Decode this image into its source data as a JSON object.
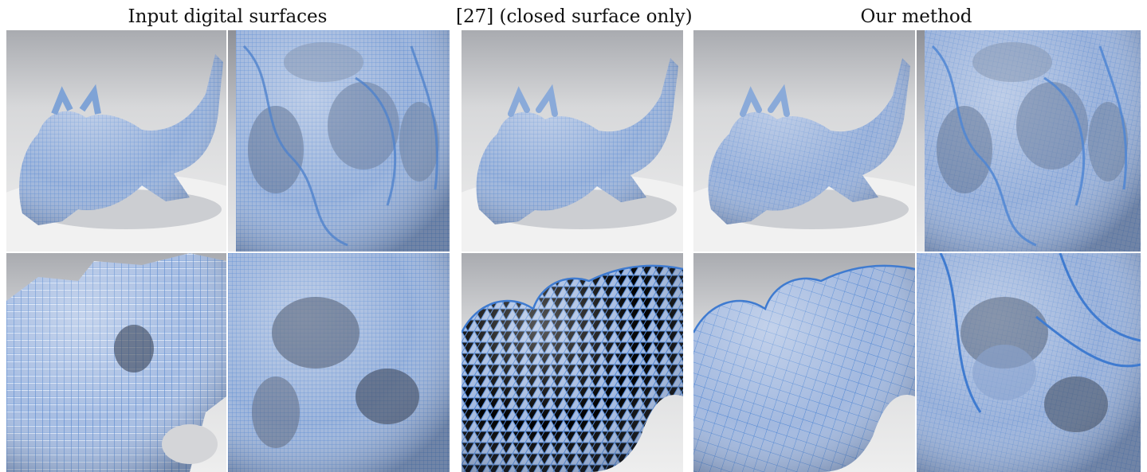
{
  "figure": {
    "columns": [
      {
        "title": "Input digital surfaces"
      },
      {
        "title": "[27] (closed surface only)"
      },
      {
        "title": "Our method"
      }
    ],
    "panels": [
      {
        "row": "overview",
        "model": "dragon",
        "mesh": "voxel"
      },
      {
        "row": "overview",
        "model": "lattice",
        "mesh": "voxel"
      },
      {
        "row": "overview",
        "model": "dragon",
        "mesh": "triangle"
      },
      {
        "row": "overview",
        "model": "dragon",
        "mesh": "quad"
      },
      {
        "row": "overview",
        "model": "lattice",
        "mesh": "quad"
      },
      {
        "row": "closeup",
        "model": "dragon",
        "mesh": "voxel"
      },
      {
        "row": "closeup",
        "model": "lattice",
        "mesh": "voxel"
      },
      {
        "row": "closeup",
        "model": "dragon",
        "mesh": "triangle"
      },
      {
        "row": "closeup",
        "model": "dragon",
        "mesh": "quad"
      },
      {
        "row": "closeup",
        "model": "lattice",
        "mesh": "quad"
      }
    ],
    "colors": {
      "surface": "#9fb6dc",
      "wire": "#5b8fd6",
      "floor": "#e6e6e6",
      "shadow": "#b9bcc2"
    }
  }
}
